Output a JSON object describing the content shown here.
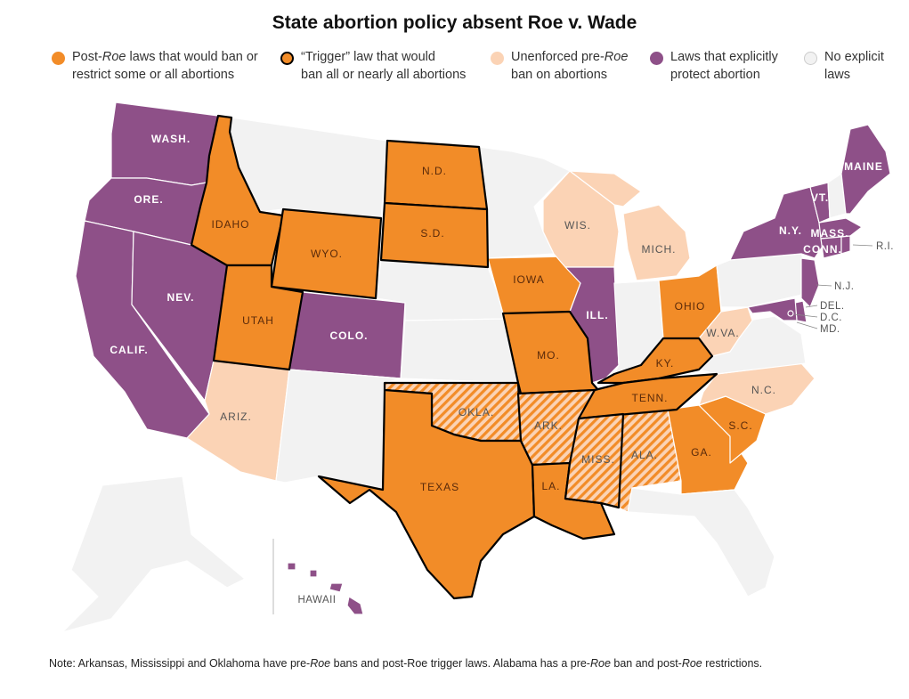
{
  "title": "State abortion policy absent Roe v. Wade",
  "colors": {
    "post_roe": "#f28c28",
    "trigger": "#f28c28",
    "unenforced": "#fbd3b5",
    "protect": "#8e5088",
    "none": "#f2f2f2",
    "border": "#ffffff",
    "trigger_border": "#000000"
  },
  "legend": [
    {
      "key": "post_roe",
      "line1_pre": "Post-",
      "line1_em": "Roe",
      "line1_post": " laws that would ban or",
      "line2": "restrict some or all abortions"
    },
    {
      "key": "trigger",
      "line1_pre": "“Trigger” law that would",
      "line1_em": "",
      "line1_post": "",
      "line2": "ban all or nearly all abortions"
    },
    {
      "key": "unenforced",
      "line1_pre": "Unenforced pre-",
      "line1_em": "Roe",
      "line1_post": "",
      "line2": "ban on abortions"
    },
    {
      "key": "protect",
      "line1_pre": "Laws that explicitly",
      "line1_em": "",
      "line1_post": "",
      "line2": "protect abortion"
    },
    {
      "key": "none",
      "line1_pre": "No explicit",
      "line1_em": "",
      "line1_post": "",
      "line2": "laws"
    }
  ],
  "states": {
    "WA": {
      "label": "WASH.",
      "category": "protect"
    },
    "OR": {
      "label": "ORE.",
      "category": "protect"
    },
    "CA": {
      "label": "CALIF.",
      "category": "protect"
    },
    "NV": {
      "label": "NEV.",
      "category": "protect"
    },
    "ID": {
      "label": "IDAHO",
      "category": "trigger"
    },
    "MT": {
      "label": "",
      "category": "none"
    },
    "WY": {
      "label": "WYO.",
      "category": "trigger"
    },
    "UT": {
      "label": "UTAH",
      "category": "trigger"
    },
    "AZ": {
      "label": "ARIZ.",
      "category": "unenforced"
    },
    "CO": {
      "label": "COLO.",
      "category": "protect"
    },
    "NM": {
      "label": "",
      "category": "none"
    },
    "ND": {
      "label": "N.D.",
      "category": "trigger"
    },
    "SD": {
      "label": "S.D.",
      "category": "trigger"
    },
    "NE": {
      "label": "",
      "category": "none"
    },
    "KS": {
      "label": "",
      "category": "none"
    },
    "OK": {
      "label": "OKLA.",
      "category": "unenforced_trigger"
    },
    "TX": {
      "label": "TEXAS",
      "category": "trigger"
    },
    "MN": {
      "label": "",
      "category": "none"
    },
    "IA": {
      "label": "IOWA",
      "category": "post_roe"
    },
    "MO": {
      "label": "MO.",
      "category": "trigger"
    },
    "AR": {
      "label": "ARK.",
      "category": "unenforced_trigger"
    },
    "LA": {
      "label": "LA.",
      "category": "trigger"
    },
    "WI": {
      "label": "WIS.",
      "category": "unenforced"
    },
    "IL": {
      "label": "ILL.",
      "category": "protect"
    },
    "MI": {
      "label": "MICH.",
      "category": "unenforced"
    },
    "IN": {
      "label": "",
      "category": "none"
    },
    "OH": {
      "label": "OHIO",
      "category": "post_roe"
    },
    "KY": {
      "label": "KY.",
      "category": "trigger"
    },
    "TN": {
      "label": "TENN.",
      "category": "trigger"
    },
    "MS": {
      "label": "MISS.",
      "category": "unenforced_trigger"
    },
    "AL": {
      "label": "ALA.",
      "category": "unenforced_post"
    },
    "GA": {
      "label": "GA.",
      "category": "post_roe"
    },
    "FL": {
      "label": "",
      "category": "none"
    },
    "SC": {
      "label": "S.C.",
      "category": "post_roe"
    },
    "NC": {
      "label": "N.C.",
      "category": "unenforced"
    },
    "WV": {
      "label": "W.VA.",
      "category": "unenforced"
    },
    "VA": {
      "label": "",
      "category": "none"
    },
    "PA": {
      "label": "",
      "category": "none"
    },
    "NY": {
      "label": "N.Y.",
      "category": "protect"
    },
    "VT": {
      "label": "VT.",
      "category": "protect"
    },
    "NH": {
      "label": "",
      "category": "none"
    },
    "ME": {
      "label": "MAINE",
      "category": "protect"
    },
    "MA": {
      "label": "MASS.",
      "category": "protect"
    },
    "CT": {
      "label": "CONN.",
      "category": "protect"
    },
    "RI": {
      "label": "R.I.",
      "category": "protect"
    },
    "NJ": {
      "label": "N.J.",
      "category": "protect"
    },
    "DE": {
      "label": "DEL.",
      "category": "protect"
    },
    "MD": {
      "label": "MD.",
      "category": "protect"
    },
    "DC": {
      "label": "D.C.",
      "category": "protect"
    },
    "AK": {
      "label": "",
      "category": "none"
    },
    "HI": {
      "label": "HAWAII",
      "category": "protect"
    }
  },
  "note": {
    "p1": "Note: Arkansas, Mississippi and Oklahoma have pre-",
    "em1": "Roe",
    "p2": " bans and post-Roe trigger laws. Alabama has a pre-",
    "em2": "Roe",
    "p3": " ban and post-",
    "em3": "Roe",
    "p4": " restrictions."
  }
}
